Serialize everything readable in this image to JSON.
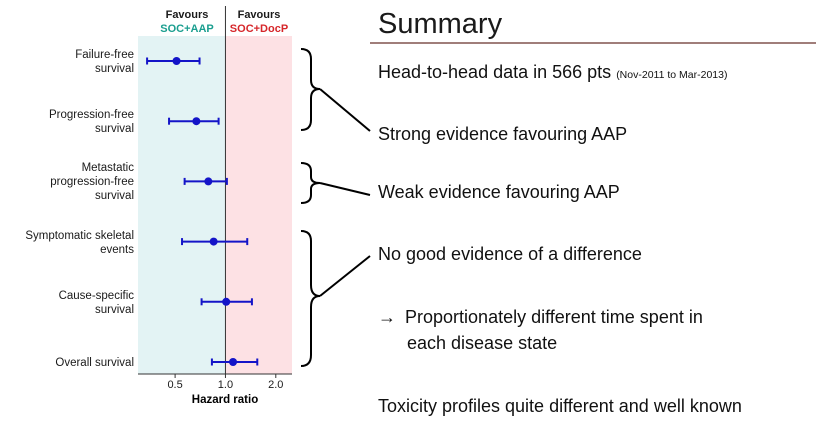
{
  "chart_data": {
    "type": "scatter",
    "subtype": "forest-plot",
    "xscale": "log",
    "xlim": [
      0.3,
      2.5
    ],
    "xticks": [
      0.5,
      1.0,
      2.0
    ],
    "xtick_labels": [
      "0.5",
      "1.0",
      "2.0"
    ],
    "xlabel": "Hazard ratio",
    "reference_line": 1.0,
    "favours_left": {
      "label": "Favours",
      "arm": "SOC+AAP",
      "color": "#1a9e8f",
      "shade": "#e3f3f4"
    },
    "favours_right": {
      "label": "Favours",
      "arm": "SOC+DocP",
      "color": "#d6262a",
      "shade": "#fde1e4"
    },
    "point_color": "#1414c8",
    "rows": [
      {
        "label": [
          "Failure-free",
          "survival"
        ],
        "hr": 0.51,
        "lo": 0.34,
        "hi": 0.7
      },
      {
        "label": [
          "Progression-free",
          "survival"
        ],
        "hr": 0.67,
        "lo": 0.46,
        "hi": 0.91
      },
      {
        "label": [
          "Metastatic",
          "progression-free",
          "survival"
        ],
        "hr": 0.79,
        "lo": 0.57,
        "hi": 1.02
      },
      {
        "label": [
          "Symptomatic skeletal",
          "events"
        ],
        "hr": 0.85,
        "lo": 0.55,
        "hi": 1.35
      },
      {
        "label": [
          "Cause-specific",
          "survival"
        ],
        "hr": 1.01,
        "lo": 0.72,
        "hi": 1.44
      },
      {
        "label": [
          "Overall survival"
        ],
        "hr": 1.11,
        "lo": 0.83,
        "hi": 1.55
      }
    ]
  },
  "summary": {
    "title": "Summary",
    "line1_main": "Head-to-head data in 566 pts",
    "line1_small": "(Nov-2011 to Mar-2013)",
    "strong": "Strong evidence favouring AAP",
    "weak": "Weak evidence favouring AAP",
    "none": "No good evidence of a difference",
    "arrow": "→",
    "prop_line1": "Proportionately different time spent in",
    "prop_line2": "each disease state",
    "toxicity": "Toxicity profiles quite different and well known"
  }
}
